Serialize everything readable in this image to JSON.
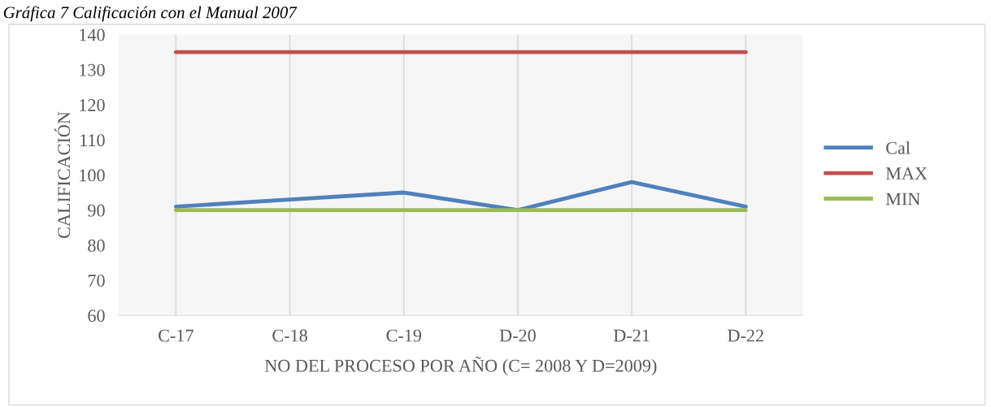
{
  "chart_data": {
    "type": "line",
    "title": "Gráfica 7 Calificación con el Manual 2007",
    "xlabel": "NO DEL PROCESO POR AÑO (C= 2008 Y D=2009)",
    "ylabel": "CALIFICACIÓN",
    "categories": [
      "C-17",
      "C-18",
      "C-19",
      "D-20",
      "D-21",
      "D-22"
    ],
    "series": [
      {
        "name": "Cal",
        "color": "#4f81bd",
        "values": [
          91,
          93,
          95,
          90,
          98,
          91
        ]
      },
      {
        "name": "MAX",
        "color": "#c0504d",
        "values": [
          135,
          135,
          135,
          135,
          135,
          135
        ]
      },
      {
        "name": "MIN",
        "color": "#9bbb59",
        "values": [
          90,
          90,
          90,
          90,
          90,
          90
        ]
      }
    ],
    "ylim": [
      60,
      140
    ],
    "yticks": [
      60,
      70,
      80,
      90,
      100,
      110,
      120,
      130,
      140
    ],
    "grid": "x",
    "legend": "right",
    "marker": "none",
    "line_style": "solid"
  }
}
